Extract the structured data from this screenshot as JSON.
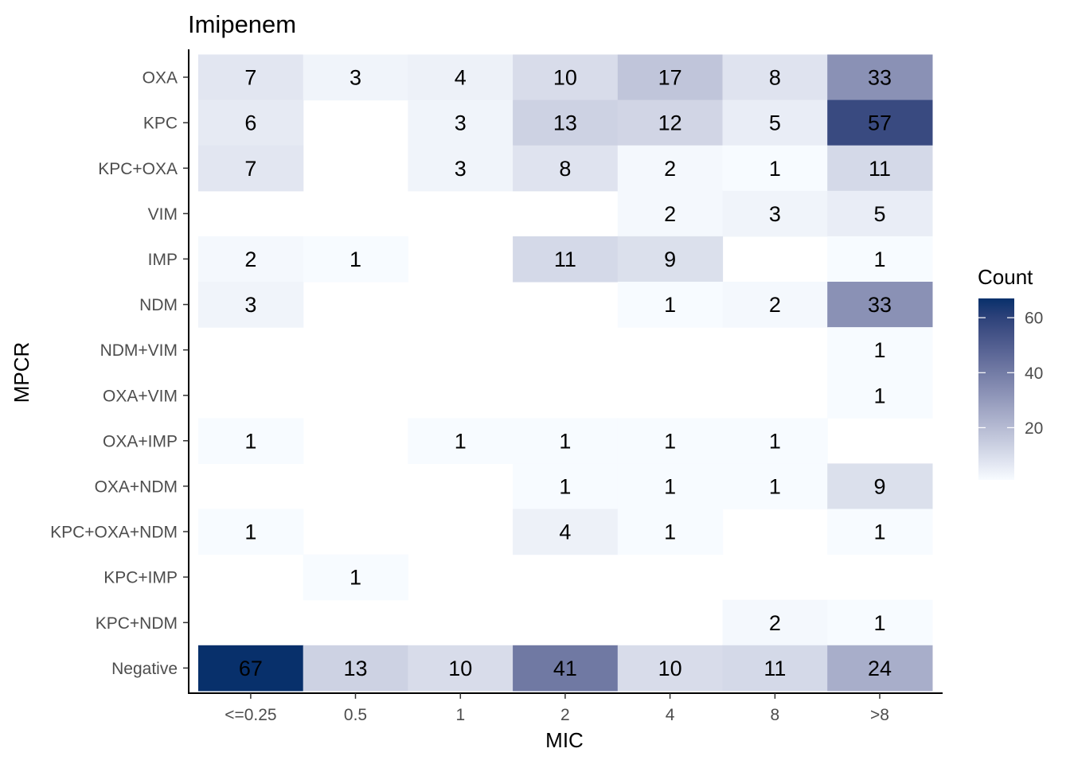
{
  "chart_data": {
    "type": "heatmap",
    "title": "Imipenem",
    "xlabel": "MIC",
    "ylabel": "MPCR",
    "x_categories": [
      "<=0.25",
      "0.5",
      "1",
      "2",
      "4",
      "8",
      ">8"
    ],
    "y_categories": [
      "OXA",
      "KPC",
      "KPC+OXA",
      "VIM",
      "IMP",
      "NDM",
      "NDM+VIM",
      "OXA+VIM",
      "OXA+IMP",
      "OXA+NDM",
      "KPC+OXA+NDM",
      "KPC+IMP",
      "KPC+NDM",
      "Negative"
    ],
    "values": [
      [
        7,
        3,
        4,
        10,
        17,
        8,
        33
      ],
      [
        6,
        null,
        3,
        13,
        12,
        5,
        57
      ],
      [
        7,
        null,
        3,
        8,
        2,
        1,
        11
      ],
      [
        null,
        null,
        null,
        null,
        2,
        3,
        5
      ],
      [
        2,
        1,
        null,
        11,
        9,
        null,
        1
      ],
      [
        3,
        null,
        null,
        null,
        1,
        2,
        33
      ],
      [
        null,
        null,
        null,
        null,
        null,
        null,
        1
      ],
      [
        null,
        null,
        null,
        null,
        null,
        null,
        1
      ],
      [
        1,
        null,
        1,
        1,
        1,
        1,
        null
      ],
      [
        null,
        null,
        null,
        1,
        1,
        1,
        9
      ],
      [
        1,
        null,
        null,
        4,
        1,
        null,
        1
      ],
      [
        null,
        1,
        null,
        null,
        null,
        null,
        null
      ],
      [
        null,
        null,
        null,
        null,
        null,
        2,
        1
      ],
      [
        67,
        13,
        10,
        41,
        10,
        11,
        24
      ]
    ],
    "legend": {
      "title": "Count",
      "ticks": [
        20,
        40,
        60
      ],
      "range": [
        1,
        67
      ],
      "position": "right"
    },
    "colors": {
      "low": "#f7fbff",
      "high": "#08306b"
    },
    "grid": false
  }
}
